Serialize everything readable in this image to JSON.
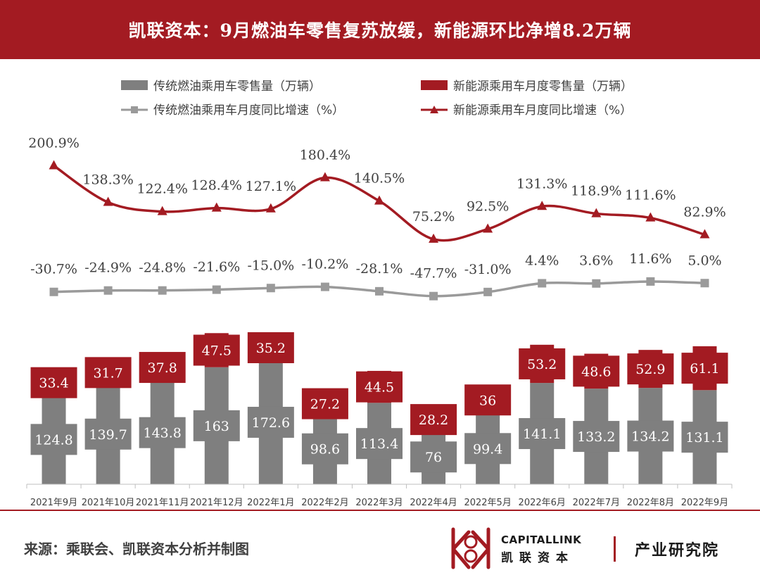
{
  "header": {
    "title": "凯联资本：9月燃油车零售复苏放缓，新能源环比净增8.2万辆"
  },
  "footer": {
    "source": "来源：乘联会、凯联资本分析并制图",
    "brand_en": "CAPITALLINK",
    "brand_cn": "凯联资本",
    "dept": "产业研究院"
  },
  "colors": {
    "fuel": "#7f7f7f",
    "nev": "#a31b22",
    "header": "#a31b22"
  },
  "chart_data": {
    "type": "bar",
    "categories": [
      "2021年9月",
      "2021年10月",
      "2021年11月",
      "2021年12月",
      "2022年1月",
      "2022年2月",
      "2022年3月",
      "2022年4月",
      "2022年5月",
      "2022年6月",
      "2022年7月",
      "2022年8月",
      "2022年9月"
    ],
    "series": [
      {
        "name": "传统燃油乘用车零售量（万辆）",
        "kind": "bar",
        "color": "#7f7f7f",
        "values": [
          124.8,
          139.7,
          143.8,
          163,
          172.6,
          98.6,
          113.4,
          76,
          99.4,
          141.1,
          133.2,
          134.2,
          131.1
        ],
        "labels": [
          "124.8",
          "139.7",
          "143.8",
          "163",
          "172.6",
          "98.6",
          "113.4",
          "76",
          "99.4",
          "141.1",
          "133.2",
          "134.2",
          "131.1"
        ]
      },
      {
        "name": "新能源乘用车月度零售量（万辆）",
        "kind": "bar",
        "color": "#a31b22",
        "values": [
          33.4,
          31.7,
          37.8,
          47.5,
          35.2,
          27.2,
          44.5,
          28.2,
          36,
          53.2,
          48.6,
          52.9,
          61.1
        ],
        "labels": [
          "33.4",
          "31.7",
          "37.8",
          "47.5",
          "35.2",
          "27.2",
          "44.5",
          "28.2",
          "36",
          "53.2",
          "48.6",
          "52.9",
          "61.1"
        ]
      },
      {
        "name": "传统燃油乘用车月度同比增速（%）",
        "kind": "line",
        "marker": "square",
        "color": "#9a9a9a",
        "values": [
          -30.7,
          -24.9,
          -24.8,
          -21.6,
          -15.0,
          -10.2,
          -28.1,
          -47.7,
          -31.0,
          4.4,
          3.6,
          11.6,
          5.0
        ],
        "labels": [
          "-30.7%",
          "-24.9%",
          "-24.8%",
          "-21.6%",
          "-15.0%",
          "-10.2%",
          "-28.1%",
          "-47.7%",
          "-31.0%",
          "4.4%",
          "3.6%",
          "11.6%",
          "5.0%"
        ]
      },
      {
        "name": "新能源乘用车月度同比增速（%）",
        "kind": "line",
        "marker": "triangle",
        "color": "#a31b22",
        "values": [
          200.9,
          138.3,
          122.4,
          128.4,
          127.1,
          180.4,
          140.5,
          75.2,
          92.5,
          131.3,
          118.9,
          111.6,
          82.9
        ],
        "labels": [
          "200.9%",
          "138.3%",
          "122.4%",
          "128.4%",
          "127.1%",
          "180.4%",
          "140.5%",
          "75.2%",
          "92.5%",
          "131.3%",
          "118.9%",
          "111.6%",
          "82.9%"
        ]
      }
    ],
    "legend_position": "top",
    "grid": false
  }
}
